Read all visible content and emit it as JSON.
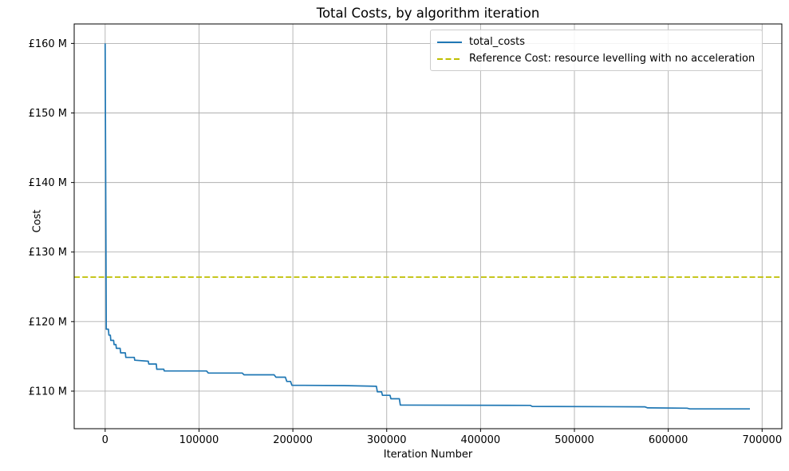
{
  "figure": {
    "title": "Total Costs, by algorithm iteration",
    "xlabel": "Iteration Number",
    "ylabel": "Cost"
  },
  "legend": {
    "items": [
      {
        "label": "total_costs",
        "color": "#1f77b4",
        "style": "solid"
      },
      {
        "label": "Reference Cost: resource levelling with no acceleration",
        "color": "#bfbf00",
        "style": "dashed"
      }
    ]
  },
  "colors": {
    "series_line": "#1f77b4",
    "reference_line": "#bfbf00",
    "grid": "#b0b0b0",
    "spine": "#000000",
    "background": "#ffffff"
  },
  "chart_data": {
    "type": "line",
    "title": "Total Costs, by algorithm iteration",
    "xlabel": "Iteration Number",
    "ylabel": "Cost",
    "y_unit": "£ millions",
    "grid": true,
    "legend_position": "upper right",
    "xlim": [
      -33000,
      721000
    ],
    "ylim": [
      104.6,
      162.8
    ],
    "x_ticks": [
      0,
      100000,
      200000,
      300000,
      400000,
      500000,
      600000,
      700000
    ],
    "x_tick_labels": [
      "0",
      "100000",
      "200000",
      "300000",
      "400000",
      "500000",
      "600000",
      "700000"
    ],
    "y_ticks": [
      110,
      120,
      130,
      140,
      150,
      160
    ],
    "y_tick_labels": [
      "£110 M",
      "£120 M",
      "£130 M",
      "£140 M",
      "£150 M",
      "£160 M"
    ],
    "series": [
      {
        "name": "total_costs",
        "color": "#1f77b4",
        "style": "solid",
        "points": [
          [
            0,
            160.0
          ],
          [
            1200,
            118.9
          ],
          [
            3500,
            118.9
          ],
          [
            4000,
            118.05
          ],
          [
            5500,
            118.05
          ],
          [
            6000,
            117.3
          ],
          [
            9000,
            117.3
          ],
          [
            9500,
            116.7
          ],
          [
            11500,
            116.7
          ],
          [
            12000,
            116.15
          ],
          [
            16000,
            116.15
          ],
          [
            16500,
            115.5
          ],
          [
            21500,
            115.5
          ],
          [
            22000,
            114.85
          ],
          [
            31000,
            114.85
          ],
          [
            31500,
            114.45
          ],
          [
            46000,
            114.3
          ],
          [
            46500,
            113.9
          ],
          [
            54500,
            113.9
          ],
          [
            55000,
            113.15
          ],
          [
            62500,
            113.15
          ],
          [
            63000,
            112.9
          ],
          [
            108000,
            112.9
          ],
          [
            110000,
            112.6
          ],
          [
            146000,
            112.6
          ],
          [
            148000,
            112.35
          ],
          [
            180000,
            112.35
          ],
          [
            182000,
            112.0
          ],
          [
            192000,
            112.0
          ],
          [
            193500,
            111.4
          ],
          [
            197500,
            111.4
          ],
          [
            199000,
            110.85
          ],
          [
            255000,
            110.8
          ],
          [
            289000,
            110.7
          ],
          [
            290000,
            109.9
          ],
          [
            294500,
            109.9
          ],
          [
            295500,
            109.4
          ],
          [
            303500,
            109.4
          ],
          [
            304500,
            108.9
          ],
          [
            313500,
            108.9
          ],
          [
            314500,
            108.0
          ],
          [
            453000,
            107.95
          ],
          [
            455000,
            107.8
          ],
          [
            575000,
            107.75
          ],
          [
            578000,
            107.6
          ],
          [
            620000,
            107.55
          ],
          [
            623000,
            107.45
          ],
          [
            687000,
            107.45
          ]
        ]
      },
      {
        "name": "Reference Cost: resource levelling with no acceleration",
        "color": "#bfbf00",
        "style": "dashed",
        "reference_value": 126.4
      }
    ]
  }
}
